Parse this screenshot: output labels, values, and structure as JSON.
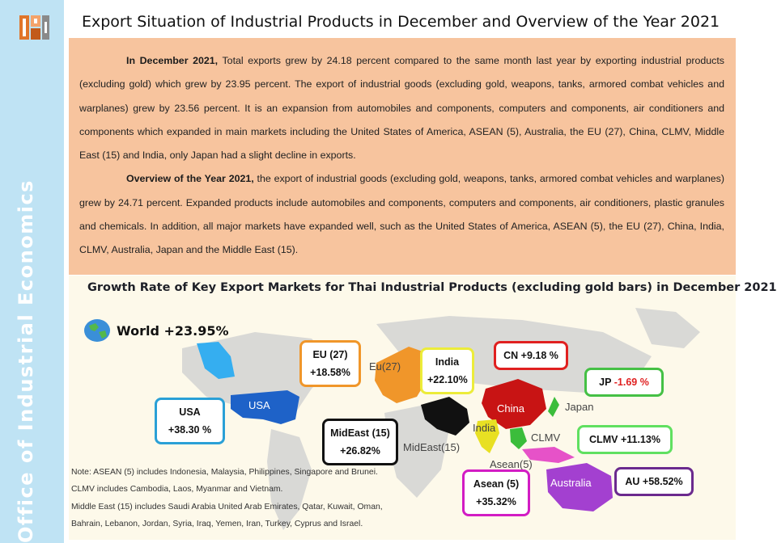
{
  "sidebar": {
    "org_name": "Office of Industrial Economics"
  },
  "header": {
    "title": "Export Situation of Industrial Products in December and Overview of the Year 2021"
  },
  "summary": {
    "p1_lead": "In December 2021,",
    "p1_body": " Total exports grew by 24.18 percent compared to the same month last year by exporting industrial products (excluding gold) which grew by 23.95 percent. The export of industrial goods (excluding gold, weapons, tanks, armored combat vehicles and warplanes) grew by 23.56 percent. It is an expansion from automobiles and components, computers and components, air conditioners and components which expanded in main markets including the United States of America, ASEAN (5), Australia, the EU (27), China, CLMV, Middle East (15) and India, only Japan had a slight decline in exports.",
    "p2_lead": "Overview of the Year 2021,",
    "p2_body": " the export of industrial goods (excluding gold, weapons, tanks, armored combat vehicles and warplanes) grew by 24.71 percent. Expanded products include automobiles and components, computers and components, air conditioners, plastic granules and chemicals. In addition, all major markets have expanded well, such as the United States of America, ASEAN (5), the EU (27), China, India, CLMV, Australia, Japan and the Middle East (15)."
  },
  "map": {
    "title": "Growth Rate of Key Export Markets for Thai Industrial Products (excluding gold bars) in December 2021",
    "world_label": "World +23.95%",
    "region_labels": {
      "usa": "USA",
      "eu": "Eu(27)",
      "china": "China",
      "india": "India",
      "japan": "Japan",
      "clmv": "CLMV",
      "asean": "Asean(5)",
      "mideast": "MidEast(15)",
      "australia": "Australia"
    },
    "callouts": {
      "usa": {
        "name": "USA",
        "value": "+38.30 %",
        "color": "#2aa0d6"
      },
      "eu": {
        "name": "EU (27)",
        "value": "+18.58%",
        "color": "#f0962a"
      },
      "india": {
        "name": "India",
        "value": "+22.10%",
        "color": "#ecec3a"
      },
      "cn": {
        "name": "CN",
        "value": "+9.18 %",
        "color": "#e02020"
      },
      "jp": {
        "name": "JP",
        "value": "-1.69 %",
        "color": "#45c045"
      },
      "clmv": {
        "name": "CLMV",
        "value": "+11.13%",
        "color": "#60e060"
      },
      "mideast": {
        "name": "MidEast (15)",
        "value": "+26.82%",
        "color": "#111111"
      },
      "asean": {
        "name": "Asean (5)",
        "value": "+35.32%",
        "color": "#d21cc4"
      },
      "au": {
        "name": "AU",
        "value": "+58.52%",
        "color": "#6b2a8e"
      }
    },
    "notes": [
      "Note: ASEAN (5) includes Indonesia, Malaysia, Philippines, Singapore and Brunei.",
      "CLMV includes Cambodia, Laos, Myanmar and Vietnam.",
      "Middle East (15) includes Saudi Arabia United Arab Emirates, Qatar, Kuwait, Oman,",
      "Bahrain, Lebanon, Jordan, Syria, Iraq, Yemen, Iran, Turkey, Cyprus and Israel."
    ]
  }
}
